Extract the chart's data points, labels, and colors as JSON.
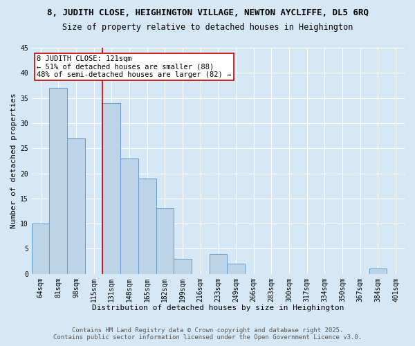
{
  "title_line1": "8, JUDITH CLOSE, HEIGHINGTON VILLAGE, NEWTON AYCLIFFE, DL5 6RQ",
  "title_line2": "Size of property relative to detached houses in Heighington",
  "xlabel": "Distribution of detached houses by size in Heighington",
  "ylabel": "Number of detached properties",
  "bar_labels": [
    "64sqm",
    "81sqm",
    "98sqm",
    "115sqm",
    "131sqm",
    "148sqm",
    "165sqm",
    "182sqm",
    "199sqm",
    "216sqm",
    "233sqm",
    "249sqm",
    "266sqm",
    "283sqm",
    "300sqm",
    "317sqm",
    "334sqm",
    "350sqm",
    "367sqm",
    "384sqm",
    "401sqm"
  ],
  "bar_values": [
    10,
    37,
    27,
    0,
    34,
    23,
    19,
    13,
    3,
    0,
    4,
    2,
    0,
    0,
    0,
    0,
    0,
    0,
    0,
    1,
    0
  ],
  "bar_color": "#bdd4e8",
  "bar_edge_color": "#6699cc",
  "annotation_text": "8 JUDITH CLOSE: 121sqm\n← 51% of detached houses are smaller (88)\n48% of semi-detached houses are larger (82) →",
  "vline_x_index": 4,
  "vline_color": "#cc0000",
  "annotation_box_color": "#ffffff",
  "annotation_box_edge": "#cc0000",
  "ylim": [
    0,
    45
  ],
  "yticks": [
    0,
    5,
    10,
    15,
    20,
    25,
    30,
    35,
    40,
    45
  ],
  "background_color": "#d6e8f5",
  "footer_line1": "Contains HM Land Registry data © Crown copyright and database right 2025.",
  "footer_line2": "Contains public sector information licensed under the Open Government Licence v3.0.",
  "title_fontsize": 9,
  "subtitle_fontsize": 8.5,
  "axis_label_fontsize": 8,
  "tick_fontsize": 7,
  "annotation_fontsize": 7.5,
  "footer_fontsize": 6.5
}
